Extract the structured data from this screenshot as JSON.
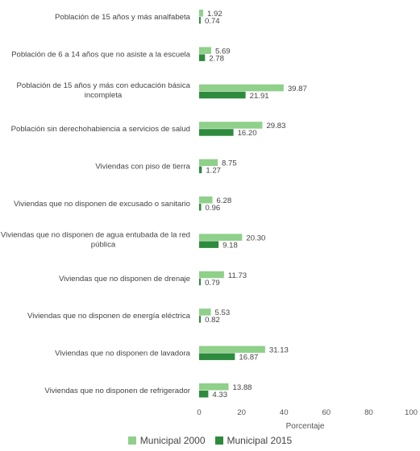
{
  "chart_data": {
    "type": "bar",
    "orientation": "horizontal",
    "categories": [
      "Población de 15 años y más analfabeta",
      "Población de 6 a 14 años que no asiste a la escuela",
      "Población de 15 años y más con educación básica incompleta",
      "Población sin derechohabiencia a servicios de salud",
      "Viviendas con piso de tierra",
      "Viviendas que no disponen de excusado o sanitario",
      "Viviendas que no disponen de agua entubada de la red pública",
      "Viviendas que no disponen de drenaje",
      "Viviendas que no disponen de energía eléctrica",
      "Viviendas que no disponen de lavadora",
      "Viviendas que no disponen de refrigerador"
    ],
    "category_lines": [
      [
        "Población de 15 años y más analfabeta"
      ],
      [
        "Población de 6 a 14 años que no asiste a la escuela"
      ],
      [
        "Población de 15 años y más con educación básica",
        "incompleta"
      ],
      [
        "Población sin derechohabiencia a servicios de salud"
      ],
      [
        "Viviendas con piso de tierra"
      ],
      [
        "Viviendas que no disponen de excusado o sanitario"
      ],
      [
        "Viviendas que no disponen de agua entubada de la red",
        "pública"
      ],
      [
        "Viviendas que no disponen de drenaje"
      ],
      [
        "Viviendas que no disponen de energía eléctrica"
      ],
      [
        "Viviendas que no disponen de lavadora"
      ],
      [
        "Viviendas que no disponen de refrigerador"
      ]
    ],
    "series": [
      {
        "name": "Municipal 2000",
        "color": "#8fd08a",
        "values": [
          1.92,
          5.69,
          39.87,
          29.83,
          8.75,
          6.28,
          20.3,
          11.73,
          5.53,
          31.13,
          13.88
        ],
        "labels": [
          "1.92",
          "5.69",
          "39.87",
          "29.83",
          "8.75",
          "6.28",
          "20.30",
          "11.73",
          "5.53",
          "31.13",
          "13.88"
        ]
      },
      {
        "name": "Municipal 2015",
        "color": "#2e8b3e",
        "values": [
          0.74,
          2.78,
          21.91,
          16.2,
          1.27,
          0.96,
          9.18,
          0.79,
          0.82,
          16.87,
          4.33
        ],
        "labels": [
          "0.74",
          "2.78",
          "21.91",
          "16.20",
          "1.27",
          "0.96",
          "9.18",
          "0.79",
          "0.82",
          "16.87",
          "4.33"
        ]
      }
    ],
    "xlim": [
      0,
      100
    ],
    "xticks": [
      "0",
      "20",
      "40",
      "60",
      "80",
      "100"
    ],
    "xlabel": "Porcentaje",
    "legend_position": "bottom-center",
    "grid": false
  }
}
